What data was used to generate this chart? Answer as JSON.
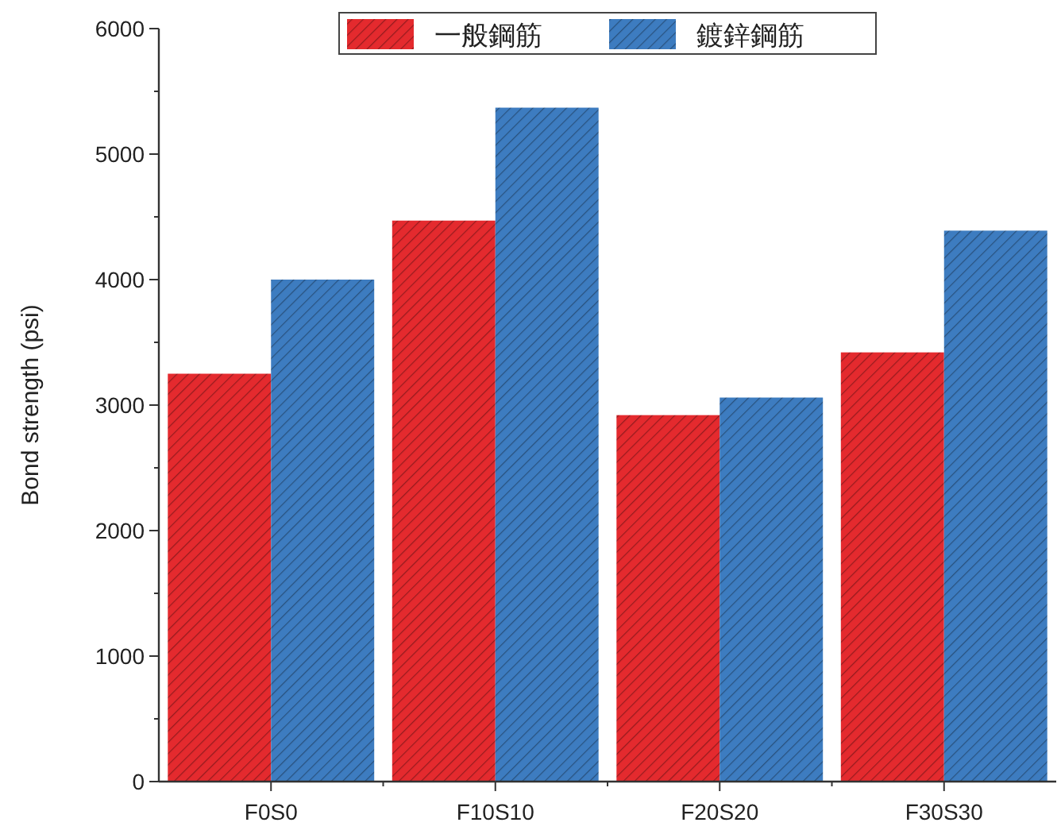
{
  "chart_data": {
    "type": "bar",
    "ylabel": "Bond strength (psi)",
    "categories": [
      "F0S0",
      "F10S10",
      "F20S20",
      "F30S30"
    ],
    "series": [
      {
        "name": "一般鋼筋",
        "color": "#e42a2e",
        "values": [
          3250,
          4470,
          2920,
          3420
        ]
      },
      {
        "name": "鍍鋅鋼筋",
        "color": "#3d7cc0",
        "values": [
          4000,
          5370,
          3060,
          4390
        ]
      }
    ],
    "ylim": [
      0,
      6000
    ],
    "yticks": [
      0,
      {
        "value": 500,
        "label": null
      },
      1000,
      {
        "value": 1500,
        "label": null
      },
      2000,
      {
        "value": 2500,
        "label": null
      },
      3000,
      {
        "value": 3500,
        "label": null
      },
      4000,
      {
        "value": 4500,
        "label": null
      },
      5000,
      {
        "value": 5500,
        "label": null
      },
      6000
    ],
    "legend": "top",
    "grid": false
  }
}
